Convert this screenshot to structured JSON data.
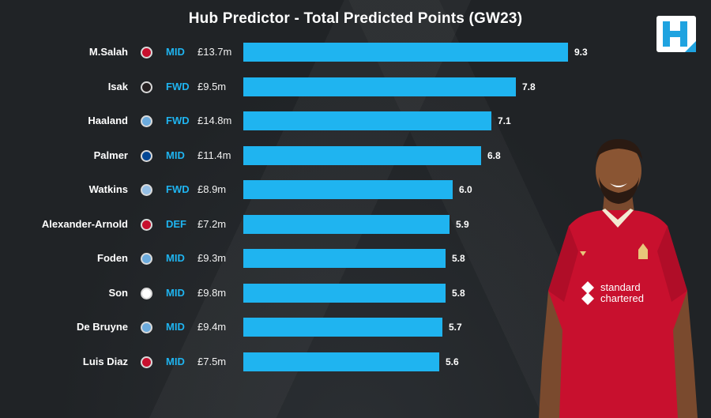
{
  "header": {
    "title": "Hub Predictor - Total Predicted Points (GW23)"
  },
  "colors": {
    "background": "#202326",
    "bar": "#1fb4f0",
    "position_text": "#1fb4f0",
    "jersey": "#c8102e"
  },
  "logo": {
    "letter": "H"
  },
  "jersey": {
    "sponsor_line1": "standard",
    "sponsor_line2": "chartered"
  },
  "chart_data": {
    "type": "bar",
    "orientation": "horizontal",
    "title": "Hub Predictor - Total Predicted Points (GW23)",
    "xlabel": "",
    "ylabel": "",
    "grid": false,
    "categories": [
      "M.Salah",
      "Isak",
      "Haaland",
      "Palmer",
      "Watkins",
      "Alexander-Arnold",
      "Foden",
      "Son",
      "De Bruyne",
      "Luis Diaz"
    ],
    "values": [
      9.3,
      7.8,
      7.1,
      6.8,
      6.0,
      5.9,
      5.8,
      5.8,
      5.7,
      5.6
    ],
    "value_labels": [
      "9.3",
      "7.8",
      "7.1",
      "6.8",
      "6.0",
      "5.9",
      "5.8",
      "5.8",
      "5.7",
      "5.6"
    ],
    "positions": [
      "MID",
      "FWD",
      "FWD",
      "MID",
      "FWD",
      "DEF",
      "MID",
      "MID",
      "MID",
      "MID"
    ],
    "prices": [
      "£13.7m",
      "£9.5m",
      "£14.8m",
      "£11.4m",
      "£8.9m",
      "£7.2m",
      "£9.3m",
      "£9.8m",
      "£9.4m",
      "£7.5m"
    ],
    "club_icons": [
      "liverpool-crest-icon",
      "newcastle-crest-icon",
      "man-city-crest-icon",
      "chelsea-crest-icon",
      "aston-villa-crest-icon",
      "liverpool-crest-icon",
      "man-city-crest-icon",
      "tottenham-crest-icon",
      "man-city-crest-icon",
      "liverpool-crest-icon"
    ],
    "club_colors": [
      "#c8102e",
      "#241f20",
      "#6cabdd",
      "#034694",
      "#95bfe5",
      "#c8102e",
      "#6cabdd",
      "#ffffff",
      "#6cabdd",
      "#c8102e"
    ]
  }
}
